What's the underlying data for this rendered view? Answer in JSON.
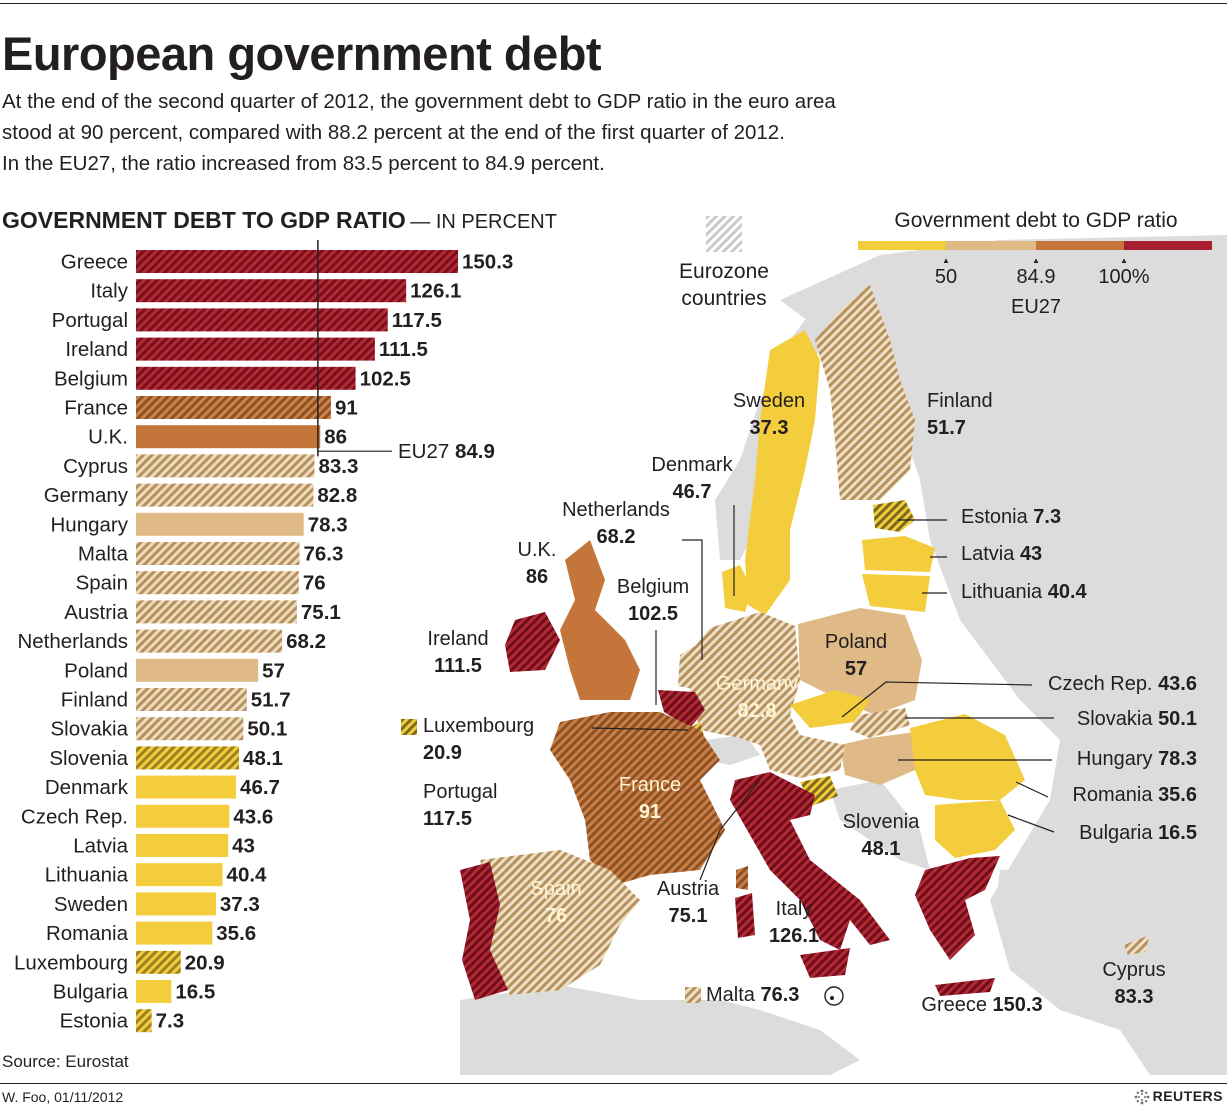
{
  "header": {
    "title": "European government debt",
    "subtitle_lines": [
      "At the end of the second quarter of 2012, the government debt to GDP ratio in the euro area",
      "stood at 90 percent, compared with 88.2 percent at the end of the first quarter of 2012.",
      "In the EU27, the ratio increased from 83.5 percent to 84.9 percent."
    ]
  },
  "colors": {
    "low": "#f3cd3c",
    "mid": "#dfba86",
    "high": "#c4763a",
    "very_high": "#a8202f",
    "land": "#dcdcdc"
  },
  "chart_data": {
    "type": "bar",
    "orientation": "horizontal",
    "title": "GOVERNMENT DEBT TO GDP RATIO",
    "title_suffix": "— IN PERCENT",
    "unit": "percent",
    "reference_line": {
      "label": "EU27",
      "value": 84.9,
      "value_text": "84.9"
    },
    "xlim": [
      0,
      150.3
    ],
    "categories": [
      "Greece",
      "Italy",
      "Portugal",
      "Ireland",
      "Belgium",
      "France",
      "U.K.",
      "Cyprus",
      "Germany",
      "Hungary",
      "Malta",
      "Spain",
      "Austria",
      "Netherlands",
      "Poland",
      "Finland",
      "Slovakia",
      "Slovenia",
      "Denmark",
      "Czech Rep.",
      "Latvia",
      "Lithuania",
      "Sweden",
      "Romania",
      "Luxembourg",
      "Bulgaria",
      "Estonia"
    ],
    "values": [
      150.3,
      126.1,
      117.5,
      111.5,
      102.5,
      91,
      86,
      83.3,
      82.8,
      78.3,
      76.3,
      76,
      75.1,
      68.2,
      57,
      51.7,
      50.1,
      48.1,
      46.7,
      43.6,
      43,
      40.4,
      37.3,
      35.6,
      20.9,
      16.5,
      7.3
    ],
    "value_labels": [
      "150.3",
      "126.1",
      "117.5",
      "111.5",
      "102.5",
      "91",
      "86",
      "83.3",
      "82.8",
      "78.3",
      "76.3",
      "76",
      "75.1",
      "68.2",
      "57",
      "51.7",
      "50.1",
      "48.1",
      "46.7",
      "43.6",
      "43",
      "40.4",
      "37.3",
      "35.6",
      "20.9",
      "16.5",
      "7.3"
    ],
    "eurozone": [
      true,
      true,
      true,
      true,
      true,
      true,
      false,
      true,
      true,
      false,
      true,
      true,
      true,
      true,
      false,
      true,
      true,
      true,
      false,
      false,
      false,
      false,
      false,
      false,
      true,
      false,
      true
    ]
  },
  "legend": {
    "title": "Government debt to GDP ratio",
    "thresholds": [
      "50",
      "84.9",
      "100%"
    ],
    "eu27_label": "EU27",
    "eurozone_label_lines": [
      "Eurozone",
      "countries"
    ]
  },
  "map": {
    "countries": {
      "greece": {
        "name": "Greece",
        "value": "150.3"
      },
      "italy": {
        "name": "Italy",
        "value": "126.1"
      },
      "portugal": {
        "name": "Portugal",
        "value": "117.5"
      },
      "ireland": {
        "name": "Ireland",
        "value": "111.5"
      },
      "belgium": {
        "name": "Belgium",
        "value": "102.5"
      },
      "france": {
        "name": "France",
        "value": "91"
      },
      "uk": {
        "name": "U.K.",
        "value": "86"
      },
      "cyprus": {
        "name": "Cyprus",
        "value": "83.3"
      },
      "germany": {
        "name": "Germany",
        "value": "82.8"
      },
      "hungary": {
        "name": "Hungary",
        "value": "78.3"
      },
      "malta": {
        "name": "Malta",
        "value": "76.3"
      },
      "spain": {
        "name": "Spain",
        "value": "76"
      },
      "austria": {
        "name": "Austria",
        "value": "75.1"
      },
      "netherlands": {
        "name": "Netherlands",
        "value": "68.2"
      },
      "poland": {
        "name": "Poland",
        "value": "57"
      },
      "finland": {
        "name": "Finland",
        "value": "51.7"
      },
      "slovakia": {
        "name": "Slovakia",
        "value": "50.1"
      },
      "slovenia": {
        "name": "Slovenia",
        "value": "48.1"
      },
      "denmark": {
        "name": "Denmark",
        "value": "46.7"
      },
      "czech": {
        "name": "Czech Rep.",
        "value": "43.6"
      },
      "latvia": {
        "name": "Latvia",
        "value": "43"
      },
      "lithuania": {
        "name": "Lithuania",
        "value": "40.4"
      },
      "sweden": {
        "name": "Sweden",
        "value": "37.3"
      },
      "romania": {
        "name": "Romania",
        "value": "35.6"
      },
      "luxembourg": {
        "name": "Luxembourg",
        "value": "20.9"
      },
      "bulgaria": {
        "name": "Bulgaria",
        "value": "16.5"
      },
      "estonia": {
        "name": "Estonia",
        "value": "7.3"
      }
    }
  },
  "footer": {
    "source": "Source: Eurostat",
    "credit": "W. Foo, 01/11/2012",
    "brand": "REUTERS"
  }
}
